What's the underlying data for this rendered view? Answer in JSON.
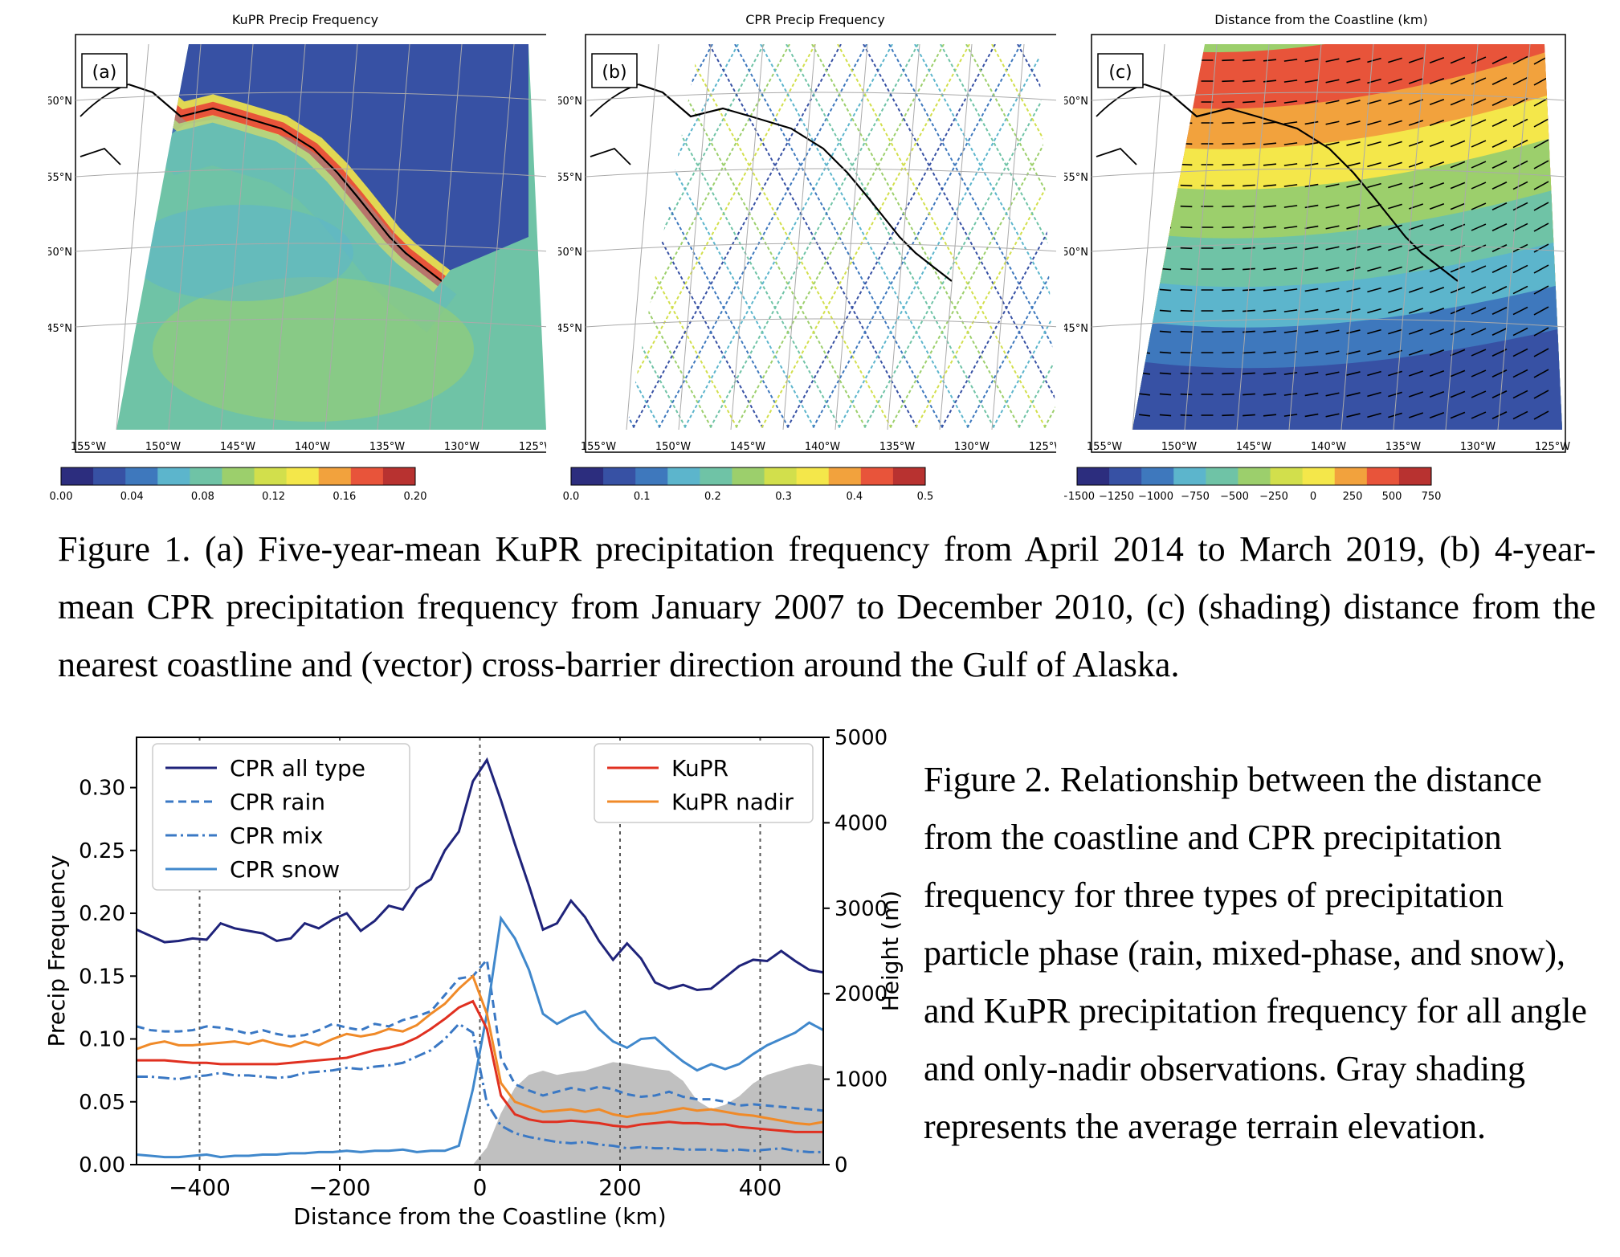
{
  "figure1": {
    "panels": [
      {
        "id": "a",
        "title": "KuPR Precip Frequency",
        "tag": "(a)",
        "colorbar_ticks": [
          "0.00",
          "0.04",
          "0.08",
          "0.12",
          "0.16",
          "0.20"
        ],
        "colors": [
          "#2c2d7e",
          "#3751a4",
          "#3e78bd",
          "#5cb5cc",
          "#6fc3a6",
          "#9ccf6c",
          "#d2df4c",
          "#f4e74a",
          "#f2a23d",
          "#e8543a",
          "#b83230"
        ]
      },
      {
        "id": "b",
        "title": "CPR Precip Frequency",
        "tag": "(b)",
        "colorbar_ticks": [
          "0.0",
          "0.1",
          "0.2",
          "0.3",
          "0.4",
          "0.5"
        ],
        "colors": [
          "#2c2d7e",
          "#3751a4",
          "#3e78bd",
          "#5cb5cc",
          "#6fc3a6",
          "#9ccf6c",
          "#d2df4c",
          "#f4e74a",
          "#f2a23d",
          "#e8543a",
          "#b83230"
        ]
      },
      {
        "id": "c",
        "title": "Distance from the Coastline (km)",
        "tag": "(c)",
        "colorbar_ticks": [
          "−1500",
          "−1250",
          "−1000",
          "−750",
          "−500",
          "−250",
          "0",
          "250",
          "500",
          "750"
        ],
        "colors": [
          "#2c2d7e",
          "#3751a4",
          "#3e78bd",
          "#5cb5cc",
          "#6fc3a6",
          "#9ccf6c",
          "#d2df4c",
          "#f4e74a",
          "#f2a23d",
          "#e8543a",
          "#b83230"
        ]
      }
    ],
    "lat_labels": [
      "60°N",
      "55°N",
      "50°N",
      "45°N"
    ],
    "lon_labels": [
      "155°W",
      "150°W",
      "145°W",
      "140°W",
      "135°W",
      "130°W",
      "125°W"
    ],
    "caption": "Figure 1. (a) Five-year-mean KuPR precipitation frequency from April 2014 to March 2019, (b) 4-year-mean CPR precipitation frequency from January 2007 to December 2010, (c) (shading) distance from the nearest coastline and (vector) cross-barrier direction around the Gulf of Alaska."
  },
  "figure2": {
    "caption": "Figure 2. Relationship between the distance from the coastline and CPR precipitation frequency for three types of precipitation particle phase (rain, mixed-phase, and snow), and KuPR precipitation frequency for all angle and only-nadir observations. Gray shading represents the average terrain elevation."
  },
  "chart_data": {
    "type": "line",
    "xlabel": "Distance from the Coastline (km)",
    "ylabel": "Precip Frequency",
    "y2label": "Height (m)",
    "xlim": [
      -490,
      490
    ],
    "ylim": [
      0,
      0.34
    ],
    "y2lim": [
      0,
      5000
    ],
    "xticks": [
      -400,
      -200,
      0,
      200,
      400
    ],
    "xtick_labels": [
      "−400",
      "−200",
      "0",
      "200",
      "400"
    ],
    "yticks": [
      0.0,
      0.05,
      0.1,
      0.15,
      0.2,
      0.25,
      0.3
    ],
    "ytick_labels": [
      "0.00",
      "0.05",
      "0.10",
      "0.15",
      "0.20",
      "0.25",
      "0.30"
    ],
    "y2ticks": [
      0,
      1000,
      2000,
      3000,
      4000,
      5000
    ],
    "y2tick_labels": [
      "0",
      "1000",
      "2000",
      "3000",
      "4000",
      "5000"
    ],
    "vlines": [
      -400,
      -200,
      0,
      200,
      400
    ],
    "x": [
      -490,
      -470,
      -450,
      -430,
      -410,
      -390,
      -370,
      -350,
      -330,
      -310,
      -290,
      -270,
      -250,
      -230,
      -210,
      -190,
      -170,
      -150,
      -130,
      -110,
      -90,
      -70,
      -50,
      -30,
      -10,
      10,
      30,
      50,
      70,
      90,
      110,
      130,
      150,
      170,
      190,
      210,
      230,
      250,
      270,
      290,
      310,
      330,
      350,
      370,
      390,
      410,
      430,
      450,
      470,
      490
    ],
    "series": [
      {
        "name": "CPR all type",
        "axis": "left",
        "color": "#1f237a",
        "dash": "solid",
        "values": [
          0.187,
          0.182,
          0.177,
          0.178,
          0.18,
          0.179,
          0.192,
          0.188,
          0.186,
          0.184,
          0.178,
          0.18,
          0.192,
          0.188,
          0.195,
          0.2,
          0.186,
          0.194,
          0.206,
          0.203,
          0.22,
          0.227,
          0.25,
          0.265,
          0.305,
          0.322,
          0.29,
          0.255,
          0.222,
          0.187,
          0.192,
          0.21,
          0.197,
          0.178,
          0.163,
          0.176,
          0.164,
          0.145,
          0.14,
          0.143,
          0.139,
          0.14,
          0.149,
          0.158,
          0.163,
          0.162,
          0.17,
          0.162,
          0.155,
          0.153
        ]
      },
      {
        "name": "CPR rain",
        "axis": "left",
        "color": "#3a78c4",
        "dash": "10,6",
        "values": [
          0.11,
          0.107,
          0.106,
          0.106,
          0.107,
          0.11,
          0.109,
          0.107,
          0.104,
          0.107,
          0.104,
          0.102,
          0.103,
          0.107,
          0.112,
          0.109,
          0.107,
          0.112,
          0.11,
          0.115,
          0.118,
          0.122,
          0.135,
          0.148,
          0.15,
          0.163,
          0.085,
          0.064,
          0.059,
          0.055,
          0.058,
          0.061,
          0.059,
          0.062,
          0.06,
          0.056,
          0.054,
          0.055,
          0.058,
          0.054,
          0.052,
          0.052,
          0.05,
          0.047,
          0.048,
          0.047,
          0.046,
          0.045,
          0.044,
          0.043
        ]
      },
      {
        "name": "CPR mix",
        "axis": "left",
        "color": "#3a78c4",
        "dash": "14,5,3,5",
        "values": [
          0.07,
          0.07,
          0.069,
          0.068,
          0.07,
          0.071,
          0.073,
          0.071,
          0.071,
          0.07,
          0.069,
          0.07,
          0.073,
          0.074,
          0.075,
          0.077,
          0.076,
          0.078,
          0.079,
          0.081,
          0.086,
          0.091,
          0.1,
          0.112,
          0.105,
          0.049,
          0.031,
          0.025,
          0.022,
          0.02,
          0.018,
          0.017,
          0.018,
          0.016,
          0.015,
          0.013,
          0.014,
          0.013,
          0.013,
          0.012,
          0.012,
          0.012,
          0.011,
          0.012,
          0.011,
          0.012,
          0.013,
          0.011,
          0.01,
          0.01
        ]
      },
      {
        "name": "CPR snow",
        "axis": "left",
        "color": "#4088cc",
        "dash": "solid",
        "values": [
          0.008,
          0.007,
          0.006,
          0.006,
          0.007,
          0.008,
          0.006,
          0.007,
          0.007,
          0.008,
          0.008,
          0.009,
          0.009,
          0.01,
          0.01,
          0.011,
          0.01,
          0.011,
          0.011,
          0.012,
          0.01,
          0.011,
          0.011,
          0.015,
          0.06,
          0.12,
          0.196,
          0.18,
          0.155,
          0.12,
          0.112,
          0.118,
          0.122,
          0.108,
          0.098,
          0.093,
          0.1,
          0.101,
          0.091,
          0.082,
          0.075,
          0.08,
          0.076,
          0.08,
          0.088,
          0.095,
          0.1,
          0.105,
          0.113,
          0.107
        ]
      },
      {
        "name": "KuPR",
        "axis": "left",
        "color": "#e03020",
        "dash": "solid",
        "values": [
          0.083,
          0.083,
          0.083,
          0.082,
          0.081,
          0.081,
          0.08,
          0.08,
          0.08,
          0.08,
          0.08,
          0.081,
          0.082,
          0.083,
          0.084,
          0.085,
          0.088,
          0.091,
          0.093,
          0.096,
          0.101,
          0.108,
          0.116,
          0.125,
          0.13,
          0.108,
          0.055,
          0.04,
          0.036,
          0.034,
          0.034,
          0.035,
          0.034,
          0.033,
          0.031,
          0.03,
          0.032,
          0.033,
          0.034,
          0.033,
          0.033,
          0.032,
          0.032,
          0.03,
          0.029,
          0.028,
          0.027,
          0.026,
          0.026,
          0.026
        ]
      },
      {
        "name": "KuPR nadir",
        "axis": "left",
        "color": "#f08a28",
        "dash": "solid",
        "values": [
          0.092,
          0.096,
          0.098,
          0.095,
          0.095,
          0.096,
          0.097,
          0.098,
          0.096,
          0.099,
          0.096,
          0.094,
          0.098,
          0.095,
          0.1,
          0.104,
          0.102,
          0.104,
          0.108,
          0.106,
          0.111,
          0.12,
          0.128,
          0.14,
          0.15,
          0.12,
          0.065,
          0.05,
          0.046,
          0.042,
          0.043,
          0.044,
          0.042,
          0.044,
          0.04,
          0.038,
          0.04,
          0.041,
          0.043,
          0.045,
          0.043,
          0.044,
          0.042,
          0.04,
          0.039,
          0.037,
          0.035,
          0.033,
          0.032,
          0.034
        ]
      },
      {
        "name": "",
        "axis": "right",
        "color": "#c0c0c0",
        "type": "area",
        "values": [
          0,
          0,
          0,
          0,
          0,
          0,
          0,
          0,
          0,
          0,
          0,
          0,
          0,
          0,
          0,
          0,
          0,
          0,
          0,
          0,
          0,
          0,
          0,
          0,
          0,
          200,
          600,
          900,
          1050,
          1100,
          1050,
          1080,
          1100,
          1150,
          1200,
          1180,
          1150,
          1120,
          1100,
          980,
          750,
          650,
          700,
          800,
          950,
          1050,
          1100,
          1150,
          1180,
          1150
        ]
      }
    ],
    "legend_left": [
      "CPR all type",
      "CPR rain",
      "CPR mix",
      "CPR snow"
    ],
    "legend_right": [
      "KuPR",
      "KuPR nadir"
    ]
  }
}
